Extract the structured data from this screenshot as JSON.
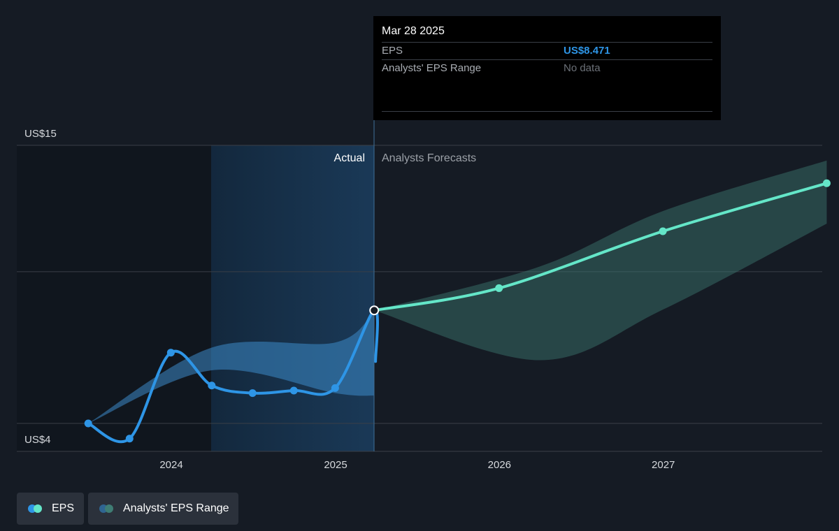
{
  "chart_data": {
    "type": "line",
    "y_axis": {
      "top_label": "US$15",
      "bottom_label": "US$4",
      "ylim": [
        4,
        15
      ]
    },
    "x_ticks": [
      "2024",
      "2025",
      "2026",
      "2027"
    ],
    "region_labels": {
      "actual": "Actual",
      "forecast": "Analysts Forecasts"
    },
    "grid": true,
    "series": [
      {
        "name": "EPS",
        "color": "#2e95e6",
        "points": [
          [
            "2023-06-30",
            4.0
          ],
          [
            "2023-09-30",
            3.4
          ],
          [
            "2023-12-31",
            6.8
          ],
          [
            "2024-03-31",
            5.5
          ],
          [
            "2024-06-30",
            5.2
          ],
          [
            "2024-09-30",
            5.3
          ],
          [
            "2024-12-31",
            5.4
          ],
          [
            "2025-03-31",
            6.45
          ],
          [
            "2025-03-28",
            8.471
          ]
        ]
      },
      {
        "name": "EPS",
        "color": "#64e6c8",
        "points": [
          [
            "2025-03-28",
            8.471
          ],
          [
            "2025-12-31",
            9.35
          ],
          [
            "2026-12-31",
            11.6
          ],
          [
            "2027-12-31",
            13.5
          ]
        ]
      }
    ],
    "range_series": [
      {
        "name": "Analysts' EPS Range",
        "color": "#3c8bc9",
        "low": [
          [
            "2023-06-30",
            4.0
          ],
          [
            "2024-03-31",
            6.1
          ],
          [
            "2024-12-31",
            5.2
          ],
          [
            "2025-03-28",
            5.1
          ]
        ],
        "high": [
          [
            "2023-06-30",
            4.0
          ],
          [
            "2024-03-31",
            7.0
          ],
          [
            "2024-12-31",
            7.2
          ],
          [
            "2025-03-28",
            8.45
          ]
        ]
      },
      {
        "name": "Analysts' EPS Range",
        "color": "#3f7d74",
        "low": [
          [
            "2025-03-28",
            8.471
          ],
          [
            "2026-03-31",
            6.5
          ],
          [
            "2026-12-31",
            8.5
          ],
          [
            "2027-12-31",
            11.9
          ]
        ],
        "high": [
          [
            "2025-03-28",
            8.471
          ],
          [
            "2026-03-31",
            10.2
          ],
          [
            "2026-12-31",
            12.4
          ],
          [
            "2027-12-31",
            14.4
          ]
        ]
      }
    ]
  },
  "tooltip": {
    "date": "Mar 28 2025",
    "rows": [
      {
        "label": "EPS",
        "value": "US$8.471"
      },
      {
        "label": "Analysts' EPS Range",
        "value": "No data"
      }
    ]
  },
  "legend": [
    {
      "label": "EPS",
      "colors": [
        "#2e95e6",
        "#64e6c8"
      ]
    },
    {
      "label": "Analysts' EPS Range",
      "colors": [
        "#2f6592",
        "#3f7d74"
      ]
    }
  ],
  "colors": {
    "background": "#151b24",
    "past_shade": "#10161e",
    "highlight": "#1a3550",
    "grid": "#3a3f47",
    "axis_text": "#d6d9dd"
  }
}
